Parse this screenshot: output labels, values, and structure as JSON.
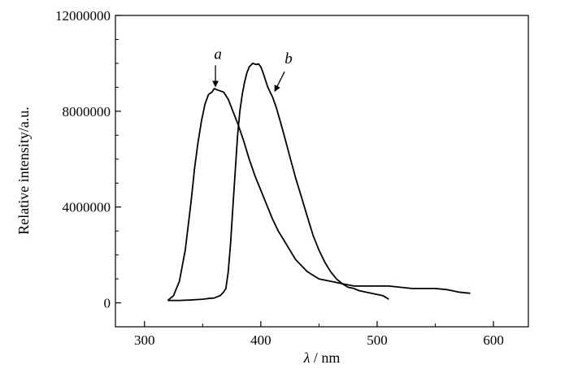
{
  "chart_data": {
    "type": "line",
    "title": "",
    "xlabel_symbol": "λ",
    "xlabel_unit": "/ nm",
    "ylabel": "Relative intensity/a.u.",
    "xlim": [
      275,
      630
    ],
    "ylim": [
      -1000000,
      12000000
    ],
    "x_ticks": [
      300,
      400,
      500,
      600
    ],
    "x_tick_labels": [
      "300",
      "400",
      "500",
      "600"
    ],
    "y_ticks": [
      0,
      4000000,
      8000000,
      12000000
    ],
    "y_tick_labels": [
      "0",
      "4000000",
      "8000000",
      "12000000"
    ],
    "grid": false,
    "series": [
      {
        "name": "a",
        "color": "#000000",
        "x": [
          320,
          325,
          330,
          335,
          340,
          343,
          346,
          349,
          352,
          355,
          358,
          360,
          362,
          365,
          368,
          372,
          376,
          380,
          385,
          390,
          395,
          400,
          405,
          410,
          415,
          420,
          425,
          430,
          440,
          450,
          460,
          470,
          480,
          490,
          500,
          510,
          520,
          530,
          540,
          550,
          560,
          570,
          580
        ],
        "y": [
          100000,
          300000,
          900000,
          2200000,
          4200000,
          5600000,
          6700000,
          7600000,
          8300000,
          8700000,
          8800000,
          8950000,
          8900000,
          8850000,
          8800000,
          8500000,
          8000000,
          7500000,
          6800000,
          6000000,
          5300000,
          4700000,
          4100000,
          3500000,
          3000000,
          2600000,
          2200000,
          1800000,
          1300000,
          1000000,
          900000,
          800000,
          700000,
          700000,
          700000,
          700000,
          650000,
          600000,
          600000,
          600000,
          550000,
          450000,
          400000
        ]
      },
      {
        "name": "b",
        "color": "#000000",
        "x": [
          320,
          330,
          340,
          350,
          355,
          360,
          365,
          368,
          370,
          372,
          374,
          376,
          378,
          380,
          382,
          384,
          386,
          388,
          390,
          393,
          396,
          398,
          400,
          402,
          404,
          406,
          408,
          410,
          413,
          416,
          420,
          425,
          430,
          435,
          440,
          445,
          450,
          455,
          460,
          465,
          470,
          475,
          480,
          485,
          490,
          495,
          500,
          505,
          510
        ],
        "y": [
          100000,
          100000,
          120000,
          150000,
          180000,
          200000,
          300000,
          450000,
          600000,
          1300000,
          2500000,
          4000000,
          5500000,
          7000000,
          8000000,
          8700000,
          9200000,
          9600000,
          9850000,
          10000000,
          9950000,
          9980000,
          9850000,
          9600000,
          9300000,
          9000000,
          8800000,
          8600000,
          8200000,
          7700000,
          7000000,
          6100000,
          5200000,
          4400000,
          3600000,
          2800000,
          2200000,
          1700000,
          1300000,
          1000000,
          800000,
          650000,
          600000,
          500000,
          450000,
          400000,
          350000,
          300000,
          150000
        ]
      }
    ],
    "annotations": [
      {
        "label": "a",
        "series": "a",
        "point_x": 361,
        "point_y": 8900000
      },
      {
        "label": "b",
        "series": "b",
        "point_x": 412,
        "point_y": 8700000
      }
    ]
  }
}
